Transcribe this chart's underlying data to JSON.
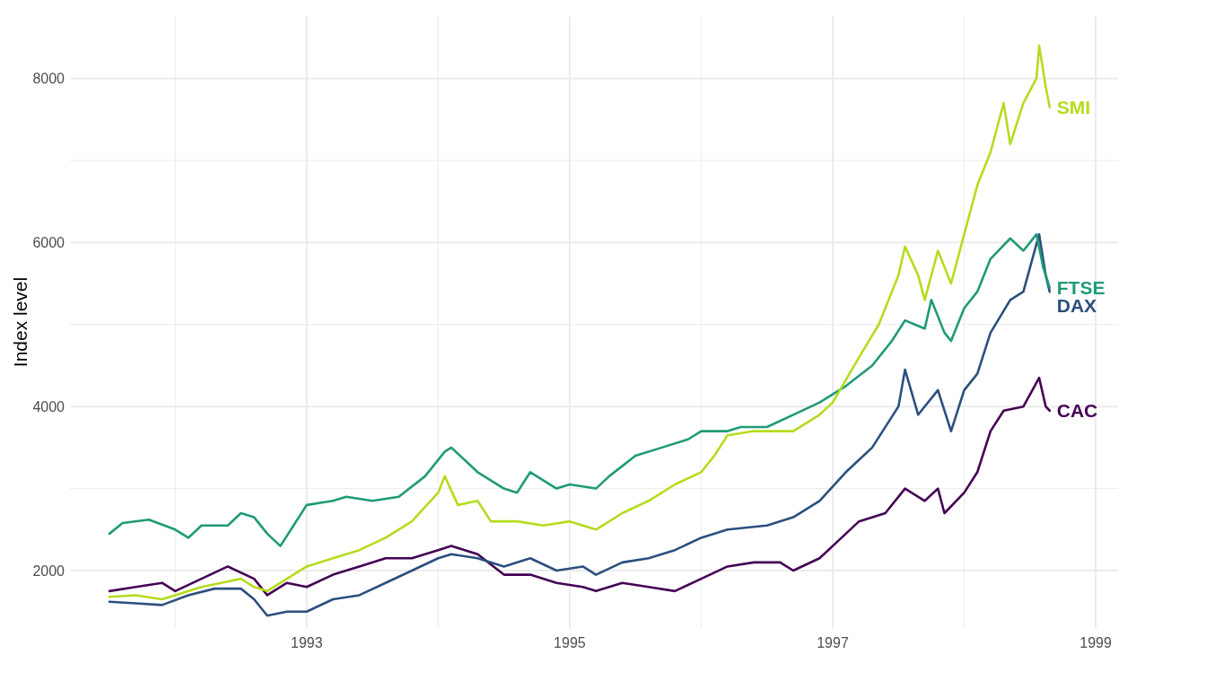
{
  "chart_data": {
    "type": "line",
    "ylabel": "Index level",
    "xlim": [
      1991.2,
      1999.17
    ],
    "ylim": [
      1300,
      8760
    ],
    "xticks": [
      {
        "value": 1992,
        "label": null
      },
      1993,
      {
        "value": 1994,
        "label": null
      },
      1995,
      {
        "value": 1996,
        "label": null
      },
      1997,
      {
        "value": 1998,
        "label": null
      },
      1999
    ],
    "yticks": [
      2000,
      {
        "value": 3000,
        "label": null
      },
      4000,
      {
        "value": 5000,
        "label": null
      },
      6000,
      {
        "value": 7000,
        "label": null
      },
      8000
    ],
    "grid": true,
    "line_style": "solid",
    "marker": "none",
    "series": [
      {
        "name": "CAC",
        "color": "#440154",
        "x": [
          1991.5,
          1991.7,
          1991.9,
          1992.0,
          1992.2,
          1992.4,
          1992.6,
          1992.7,
          1992.85,
          1993.0,
          1993.2,
          1993.4,
          1993.6,
          1993.8,
          1994.0,
          1994.1,
          1994.3,
          1994.5,
          1994.7,
          1994.9,
          1995.1,
          1995.2,
          1995.4,
          1995.6,
          1995.8,
          1996.0,
          1996.2,
          1996.4,
          1996.6,
          1996.7,
          1996.9,
          1997.0,
          1997.2,
          1997.4,
          1997.55,
          1997.7,
          1997.8,
          1997.85,
          1998.0,
          1998.1,
          1998.2,
          1998.3,
          1998.45,
          1998.57,
          1998.62,
          1998.65
        ],
        "values": [
          1750,
          1800,
          1850,
          1750,
          1900,
          2050,
          1900,
          1700,
          1850,
          1800,
          1950,
          2050,
          2150,
          2150,
          2250,
          2300,
          2200,
          1950,
          1950,
          1850,
          1800,
          1750,
          1850,
          1800,
          1750,
          1900,
          2050,
          2100,
          2100,
          2000,
          2150,
          2300,
          2600,
          2700,
          3000,
          2850,
          3000,
          2700,
          2950,
          3200,
          3700,
          3950,
          4000,
          4350,
          4000,
          3950
        ]
      },
      {
        "name": "DAX",
        "color": "#2c4f7e",
        "x": [
          1991.5,
          1991.7,
          1991.9,
          1992.1,
          1992.3,
          1992.5,
          1992.6,
          1992.7,
          1992.85,
          1993.0,
          1993.2,
          1993.4,
          1993.6,
          1993.8,
          1994.0,
          1994.1,
          1994.3,
          1994.5,
          1994.7,
          1994.9,
          1995.1,
          1995.2,
          1995.4,
          1995.6,
          1995.8,
          1996.0,
          1996.2,
          1996.5,
          1996.7,
          1996.9,
          1997.1,
          1997.3,
          1997.5,
          1997.55,
          1997.65,
          1997.8,
          1997.9,
          1998.0,
          1998.1,
          1998.2,
          1998.35,
          1998.45,
          1998.57,
          1998.62,
          1998.65
        ],
        "values": [
          1620,
          1600,
          1580,
          1700,
          1780,
          1780,
          1650,
          1450,
          1500,
          1500,
          1650,
          1700,
          1850,
          2000,
          2150,
          2200,
          2150,
          2050,
          2150,
          2000,
          2050,
          1950,
          2100,
          2150,
          2250,
          2400,
          2500,
          2550,
          2650,
          2850,
          3200,
          3500,
          4000,
          4450,
          3900,
          4200,
          3700,
          4200,
          4400,
          4900,
          5300,
          5400,
          6100,
          5600,
          5400
        ]
      },
      {
        "name": "FTSE",
        "color": "#1f9a77",
        "x": [
          1991.5,
          1991.6,
          1991.8,
          1991.9,
          1992.0,
          1992.1,
          1992.2,
          1992.4,
          1992.5,
          1992.6,
          1992.7,
          1992.8,
          1992.9,
          1993.0,
          1993.2,
          1993.3,
          1993.5,
          1993.7,
          1993.9,
          1994.05,
          1994.1,
          1994.3,
          1994.5,
          1994.6,
          1994.7,
          1994.9,
          1995.0,
          1995.2,
          1995.3,
          1995.5,
          1995.7,
          1995.9,
          1996.0,
          1996.2,
          1996.3,
          1996.5,
          1996.7,
          1996.9,
          1997.1,
          1997.3,
          1997.45,
          1997.55,
          1997.7,
          1997.75,
          1997.85,
          1997.9,
          1998.0,
          1998.1,
          1998.2,
          1998.35,
          1998.45,
          1998.55,
          1998.6,
          1998.65
        ],
        "values": [
          2450,
          2580,
          2620,
          2560,
          2500,
          2400,
          2550,
          2550,
          2700,
          2650,
          2450,
          2300,
          2550,
          2800,
          2850,
          2900,
          2850,
          2900,
          3150,
          3450,
          3500,
          3200,
          3000,
          2950,
          3200,
          3000,
          3050,
          3000,
          3150,
          3400,
          3500,
          3600,
          3700,
          3700,
          3750,
          3750,
          3900,
          4050,
          4250,
          4500,
          4800,
          5050,
          4950,
          5300,
          4900,
          4800,
          5200,
          5400,
          5800,
          6050,
          5900,
          6100,
          5700,
          5450
        ]
      },
      {
        "name": "SMI",
        "color": "#b5dc1e",
        "x": [
          1991.5,
          1991.7,
          1991.9,
          1992.0,
          1992.2,
          1992.35,
          1992.5,
          1992.6,
          1992.7,
          1992.8,
          1993.0,
          1993.2,
          1993.4,
          1993.6,
          1993.8,
          1994.0,
          1994.05,
          1994.15,
          1994.3,
          1994.4,
          1994.6,
          1994.8,
          1995.0,
          1995.2,
          1995.4,
          1995.6,
          1995.8,
          1996.0,
          1996.1,
          1996.2,
          1996.4,
          1996.5,
          1996.7,
          1996.9,
          1997.0,
          1997.2,
          1997.35,
          1997.5,
          1997.55,
          1997.65,
          1997.7,
          1997.8,
          1997.9,
          1998.0,
          1998.1,
          1998.2,
          1998.3,
          1998.35,
          1998.45,
          1998.55,
          1998.57,
          1998.62,
          1998.65
        ],
        "values": [
          1680,
          1700,
          1650,
          1700,
          1800,
          1850,
          1900,
          1800,
          1750,
          1850,
          2050,
          2150,
          2250,
          2400,
          2600,
          2950,
          3150,
          2800,
          2850,
          2600,
          2600,
          2550,
          2600,
          2500,
          2700,
          2850,
          3050,
          3200,
          3400,
          3650,
          3700,
          3700,
          3700,
          3900,
          4050,
          4600,
          5000,
          5600,
          5950,
          5600,
          5300,
          5900,
          5500,
          6100,
          6700,
          7100,
          7700,
          7200,
          7700,
          8000,
          8400,
          7900,
          7650
        ]
      }
    ]
  }
}
